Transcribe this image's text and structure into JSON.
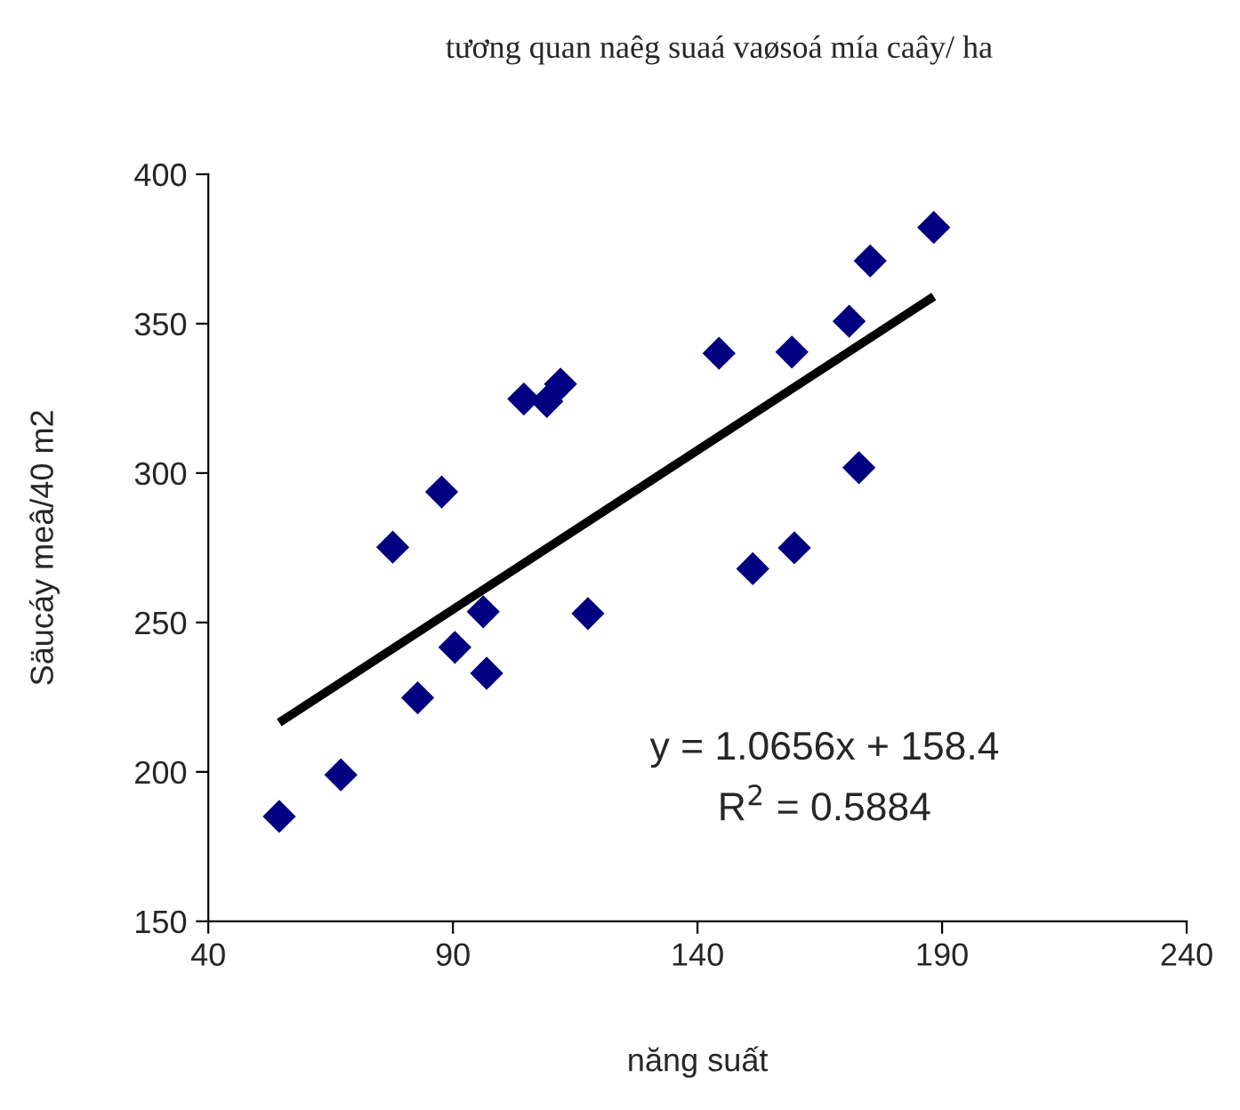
{
  "chart_data": {
    "type": "scatter",
    "title": "tương quan naêg suaá vaøsoá mía caây/ ha",
    "xlabel": "năng suất",
    "ylabel": "Säucáy meâ/40 m2",
    "annotations": [
      "y = 1.0656x + 158.4",
      "R$^{2}$ = 0.5884"
    ],
    "series": [
      {
        "color": "#000080",
        "marker": "diamond",
        "x": [
          54.5,
          67.1,
          77.7,
          82.8,
          87.7,
          90.4,
          96.2,
          96.9,
          104.5,
          109.2,
          112.0,
          117.6,
          144.4,
          151.3,
          159.3,
          159.8,
          171.0,
          173.0,
          175.3,
          188.3
        ],
        "values": [
          185.1,
          199.0,
          275.2,
          224.8,
          293.7,
          241.7,
          253.6,
          233.0,
          324.8,
          324.0,
          329.8,
          253.0,
          340.1,
          268.0,
          340.5,
          275.0,
          350.8,
          301.8,
          371.0,
          382.2
        ]
      },
      {
        "type": "line",
        "color": "#000000",
        "marker": "none",
        "line_style": "solid",
        "x": [
          54.5,
          188.3
        ],
        "values": [
          216.5,
          359.1
        ]
      }
    ],
    "xlim": [
      40,
      240
    ],
    "xticks": [
      40,
      90,
      140,
      190,
      240
    ],
    "ylim": [
      150,
      400
    ],
    "yticks": [
      150,
      200,
      250,
      300,
      350,
      400
    ],
    "grid": false,
    "legend": false
  }
}
